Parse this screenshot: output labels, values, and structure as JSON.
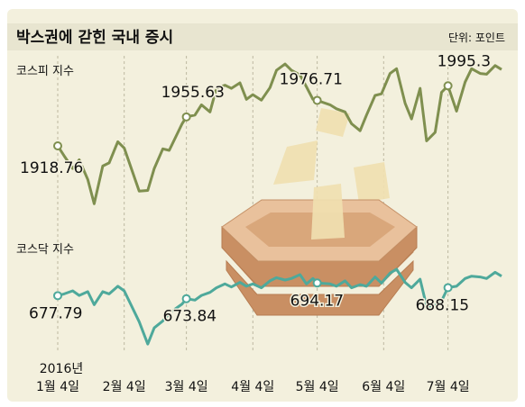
{
  "title": "박스권에 갇힌 국내 증시",
  "unit": "단위: 포인트",
  "colors": {
    "background": "#f3f0dd",
    "title_bar": "#e8e5d0",
    "kospi": "#7f8f4f",
    "kosdaq": "#4ea99b",
    "box_front": "#d9a77b",
    "box_side": "#c98f63",
    "box_top": "#e9c19c",
    "paper": "#f0dfb0"
  },
  "chart_data": [
    {
      "type": "line",
      "name": "코스피 지수",
      "x": [
        "1월 4일",
        "2월 4일",
        "3월 4일",
        "4월 4일",
        "5월 4일",
        "6월 4일",
        "7월 4일"
      ],
      "year_label": "2016년",
      "points": [
        [
          "01-04",
          1918.76
        ],
        [
          "01-07",
          1906
        ],
        [
          "01-11",
          1890
        ],
        [
          "01-14",
          1901
        ],
        [
          "01-18",
          1876
        ],
        [
          "01-21",
          1845
        ],
        [
          "01-25",
          1893
        ],
        [
          "01-28",
          1897
        ],
        [
          "02-01",
          1924
        ],
        [
          "02-04",
          1916
        ],
        [
          "02-11",
          1861
        ],
        [
          "02-15",
          1862
        ],
        [
          "02-18",
          1890
        ],
        [
          "02-22",
          1915
        ],
        [
          "02-25",
          1913
        ],
        [
          "03-02",
          1947
        ],
        [
          "03-04",
          1955.63
        ],
        [
          "03-08",
          1958
        ],
        [
          "03-11",
          1971
        ],
        [
          "03-15",
          1962
        ],
        [
          "03-18",
          1992
        ],
        [
          "03-22",
          1996
        ],
        [
          "03-25",
          1992
        ],
        [
          "03-29",
          1999
        ],
        [
          "04-01",
          1978
        ],
        [
          "04-04",
          1984
        ],
        [
          "04-08",
          1977
        ],
        [
          "04-12",
          1993
        ],
        [
          "04-15",
          2015
        ],
        [
          "04-19",
          2023
        ],
        [
          "04-22",
          2015
        ],
        [
          "04-26",
          2009
        ],
        [
          "04-29",
          1994
        ],
        [
          "05-02",
          1978
        ],
        [
          "05-04",
          1976.71
        ],
        [
          "05-10",
          1971
        ],
        [
          "05-13",
          1966
        ],
        [
          "05-17",
          1962
        ],
        [
          "05-20",
          1947
        ],
        [
          "05-24",
          1938
        ],
        [
          "05-27",
          1958
        ],
        [
          "05-31",
          1983
        ],
        [
          "06-03",
          1985
        ],
        [
          "06-07",
          2011
        ],
        [
          "06-10",
          2017
        ],
        [
          "06-14",
          1973
        ],
        [
          "06-17",
          1953
        ],
        [
          "06-21",
          1992
        ],
        [
          "06-24",
          1925
        ],
        [
          "06-28",
          1936
        ],
        [
          "07-01",
          1987
        ],
        [
          "07-04",
          1995.3
        ],
        [
          "07-08",
          1963
        ],
        [
          "07-12",
          2000
        ],
        [
          "07-15",
          2017
        ],
        [
          "07-19",
          2011
        ],
        [
          "07-22",
          2010
        ],
        [
          "07-26",
          2021
        ],
        [
          "07-29",
          2016
        ]
      ],
      "labeled_points": [
        {
          "date": "01-04",
          "value": 1918.76,
          "label": "1918.76"
        },
        {
          "date": "03-04",
          "value": 1955.63,
          "label": "1955.63"
        },
        {
          "date": "05-04",
          "value": 1976.71,
          "label": "1976.71"
        },
        {
          "date": "07-04",
          "value": 1995.3,
          "label": "1995.3"
        }
      ],
      "ylim": [
        1835,
        2030
      ]
    },
    {
      "type": "line",
      "name": "코스닥 지수",
      "points": [
        [
          "01-04",
          677.79
        ],
        [
          "01-07",
          680
        ],
        [
          "01-11",
          684
        ],
        [
          "01-14",
          678
        ],
        [
          "01-18",
          683
        ],
        [
          "01-21",
          666
        ],
        [
          "01-25",
          683
        ],
        [
          "01-28",
          680
        ],
        [
          "02-01",
          690
        ],
        [
          "02-04",
          684
        ],
        [
          "02-11",
          644
        ],
        [
          "02-15",
          615
        ],
        [
          "02-18",
          636
        ],
        [
          "02-22",
          645
        ],
        [
          "02-25",
          655
        ],
        [
          "03-02",
          667
        ],
        [
          "03-04",
          673.84
        ],
        [
          "03-08",
          672
        ],
        [
          "03-11",
          678
        ],
        [
          "03-15",
          682
        ],
        [
          "03-18",
          688
        ],
        [
          "03-22",
          693
        ],
        [
          "03-25",
          689
        ],
        [
          "03-29",
          695
        ],
        [
          "04-01",
          690
        ],
        [
          "04-04",
          693
        ],
        [
          "04-08",
          688
        ],
        [
          "04-12",
          697
        ],
        [
          "04-15",
          701
        ],
        [
          "04-19",
          698
        ],
        [
          "04-22",
          700
        ],
        [
          "04-26",
          705
        ],
        [
          "04-29",
          693
        ],
        [
          "05-02",
          700
        ],
        [
          "05-04",
          694.17
        ],
        [
          "05-10",
          693
        ],
        [
          "05-13",
          690
        ],
        [
          "05-17",
          697
        ],
        [
          "05-20",
          688
        ],
        [
          "05-24",
          692
        ],
        [
          "05-27",
          690
        ],
        [
          "05-31",
          702
        ],
        [
          "06-03",
          694
        ],
        [
          "06-07",
          707
        ],
        [
          "06-10",
          712
        ],
        [
          "06-14",
          695
        ],
        [
          "06-17",
          688
        ],
        [
          "06-21",
          699
        ],
        [
          "06-24",
          664
        ],
        [
          "06-28",
          665
        ],
        [
          "07-01",
          671
        ],
        [
          "07-04",
          688.15
        ],
        [
          "07-08",
          690
        ],
        [
          "07-12",
          700
        ],
        [
          "07-15",
          703
        ],
        [
          "07-19",
          702
        ],
        [
          "07-22",
          700
        ],
        [
          "07-26",
          708
        ],
        [
          "07-29",
          703
        ]
      ],
      "labeled_points": [
        {
          "date": "01-04",
          "value": 677.79,
          "label": "677.79"
        },
        {
          "date": "03-04",
          "value": 673.84,
          "label": "673.84"
        },
        {
          "date": "05-04",
          "value": 694.17,
          "label": "694.17"
        },
        {
          "date": "07-04",
          "value": 688.15,
          "label": "688.15"
        }
      ],
      "ylim": [
        600,
        740
      ]
    }
  ]
}
